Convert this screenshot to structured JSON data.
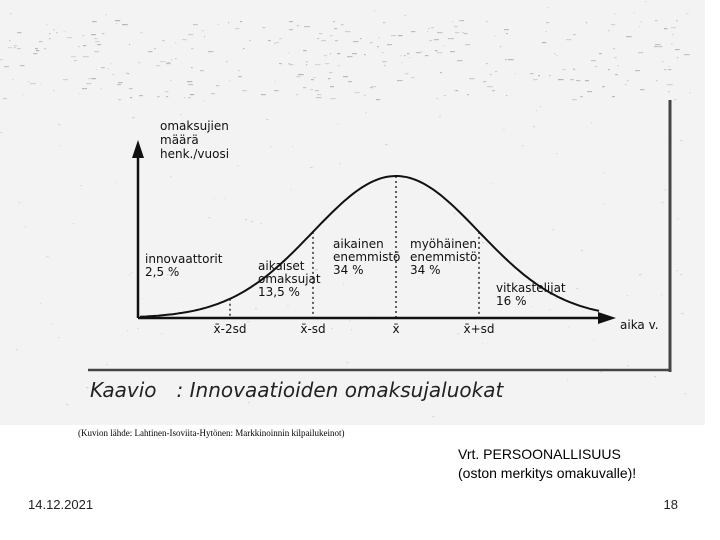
{
  "figure": {
    "y_axis_label": [
      "omaksujien",
      "määrä",
      "henk./vuosi"
    ],
    "x_axis_label": "aika v.",
    "x_ticks": [
      "x̄-2sd",
      "x̄-sd",
      "x̄",
      "x̄+sd"
    ],
    "categories": [
      {
        "lines": [
          "innovaattorit",
          "2,5 %"
        ]
      },
      {
        "lines": [
          "aikaiset",
          "omaksujat",
          "13,5 %"
        ]
      },
      {
        "lines": [
          "aikainen",
          "enemmistö",
          "34 %"
        ]
      },
      {
        "lines": [
          "myöhäinen",
          "enemmistö",
          "34 %"
        ]
      },
      {
        "lines": [
          "vitkastelijat",
          "16 %"
        ]
      }
    ],
    "caption_prefix": "Kaavio",
    "caption_title": ": Innovaatioiden omaksujaluokat"
  },
  "source_note": "(Kuvion lähde: Lahtinen-Isoviita-Hytönen: Markkinoinnin kilpailukeinot)",
  "compare_note": {
    "line1": "Vrt. PERSOONALLISUUS",
    "line2": "(oston merkitys omakuvalle)!"
  },
  "footer": {
    "date": "14.12.2021",
    "page": "18"
  }
}
